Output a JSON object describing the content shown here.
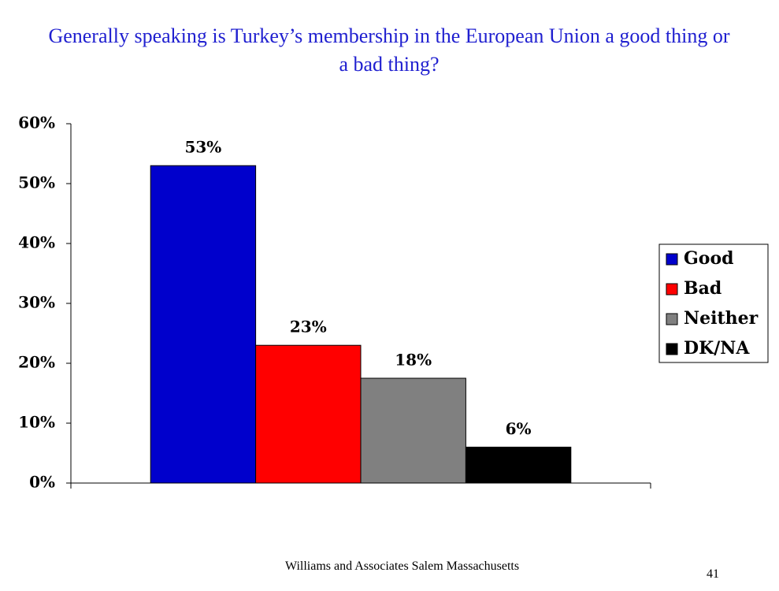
{
  "chart_data": {
    "type": "bar",
    "title": "Generally speaking is Turkey’s membership in the European Union a good thing or a bad thing?",
    "categories": [
      null
    ],
    "series": [
      {
        "name": "Good",
        "color": "#0000cc",
        "values": [
          53
        ],
        "value_labels": [
          "53%"
        ]
      },
      {
        "name": "Bad",
        "color": "#ff0000",
        "values": [
          23
        ],
        "value_labels": [
          "23%"
        ]
      },
      {
        "name": "Neither",
        "color": "#808080",
        "values": [
          17.5
        ],
        "value_labels": [
          "18%"
        ]
      },
      {
        "name": "DK/NA",
        "color": "#000000",
        "values": [
          6
        ],
        "value_labels": [
          "6%"
        ]
      }
    ],
    "ylim": [
      0,
      60
    ],
    "yticks": [
      {
        "value": 0,
        "label": "0%"
      },
      {
        "value": 10,
        "label": "10%"
      },
      {
        "value": 20,
        "label": "20%"
      },
      {
        "value": 30,
        "label": "30%"
      },
      {
        "value": 40,
        "label": "40%"
      },
      {
        "value": 50,
        "label": "50%"
      },
      {
        "value": 60,
        "label": "60%"
      }
    ],
    "grid": false,
    "legend": "right"
  },
  "footer": {
    "source": "Williams and Associates Salem Massachusetts",
    "page_number": "41"
  }
}
